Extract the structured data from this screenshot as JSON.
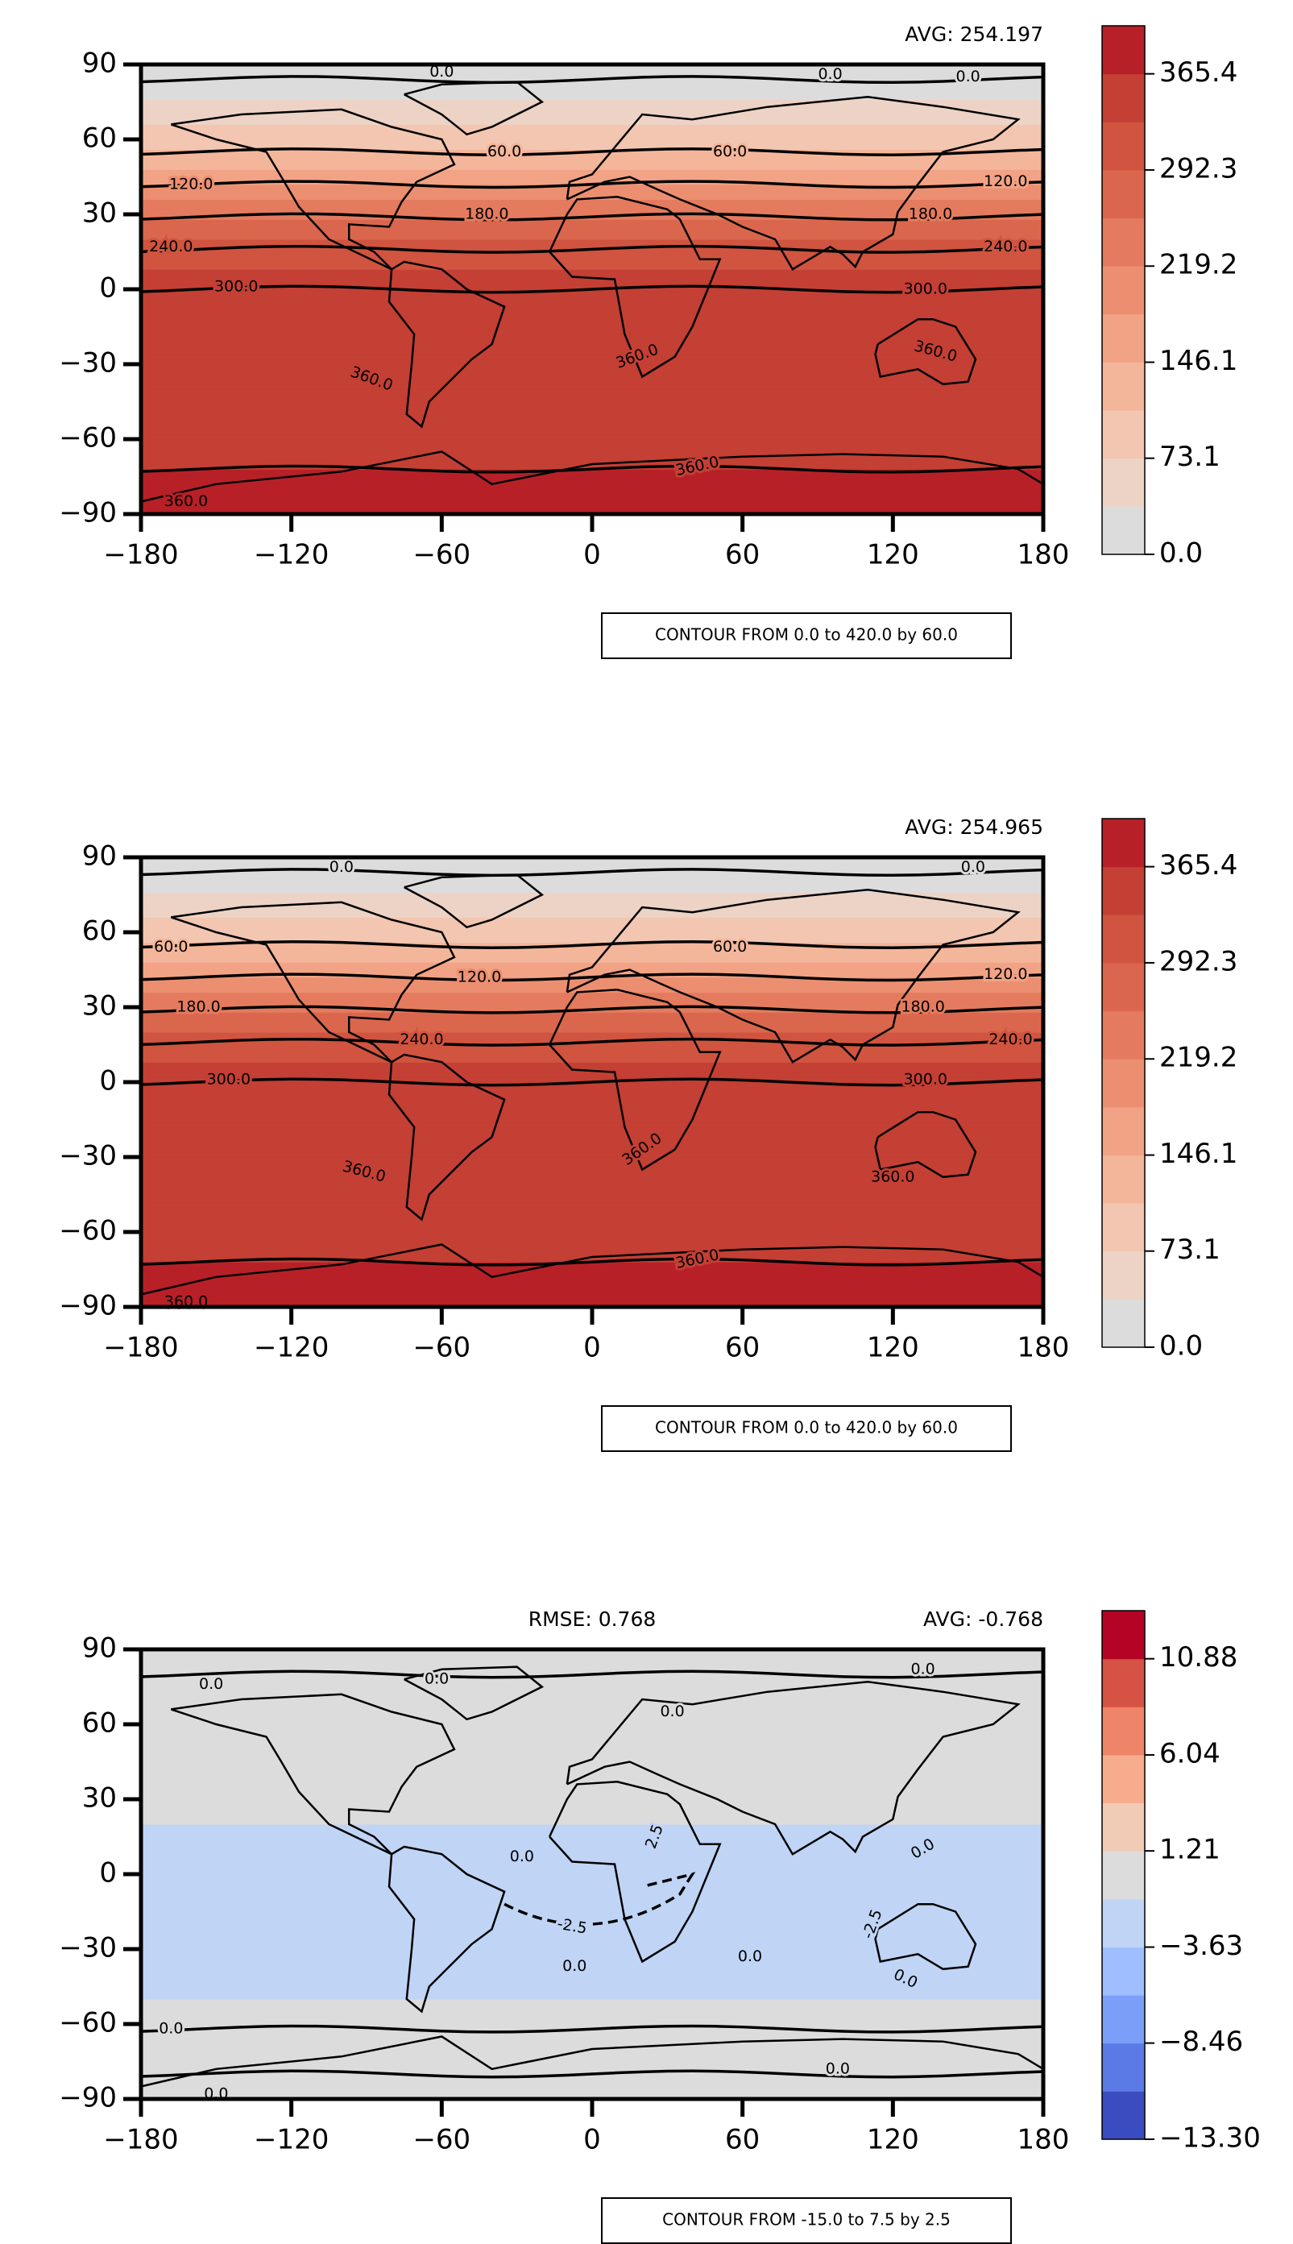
{
  "chart_data": [
    {
      "type": "contour-map",
      "avg": "AVG: 254.197",
      "contour_info": "CONTOUR FROM 0.0 to 420.0 by 60.0",
      "xlim": [
        -180,
        180
      ],
      "ylim": [
        -90,
        90
      ],
      "xticks": [
        {
          "value": -180,
          "label": "−180"
        },
        {
          "value": -120,
          "label": "−120"
        },
        {
          "value": -60,
          "label": "−60"
        },
        0,
        60,
        120,
        180
      ],
      "yticks": [
        {
          "value": -90,
          "label": "−90"
        },
        {
          "value": -60,
          "label": "−60"
        },
        {
          "value": -30,
          "label": "−30"
        },
        0,
        30,
        60,
        90
      ],
      "colorbar_lim": [
        0,
        401.94
      ],
      "colorbar_ticks": [
        {
          "value": 0,
          "label": "0.0"
        },
        73.1,
        146.1,
        219.2,
        292.3,
        365.4
      ],
      "colors": [
        "#dddcdc",
        "#ecd3c5",
        "#f2c6b0",
        "#f4b69b",
        "#f2a385",
        "#ec8f70",
        "#e47b5e",
        "#da674d",
        "#d0543f",
        "#c43f34",
        "#b82027"
      ],
      "contour_labels": [
        "0.0",
        "0.0",
        "0.0",
        "60.0",
        "60.0",
        "120.0",
        "120.0",
        "180.0",
        "180.0",
        "240.0",
        "240.0",
        "300.0",
        "300.0",
        "360.0",
        "360.0",
        "360.0",
        "360.0",
        "360.0"
      ]
    },
    {
      "type": "contour-map",
      "avg": "AVG: 254.965",
      "contour_info": "CONTOUR FROM 0.0 to 420.0 by 60.0",
      "xlim": [
        -180,
        180
      ],
      "ylim": [
        -90,
        90
      ],
      "xticks": [
        {
          "value": -180,
          "label": "−180"
        },
        {
          "value": -120,
          "label": "−120"
        },
        {
          "value": -60,
          "label": "−60"
        },
        0,
        60,
        120,
        180
      ],
      "yticks": [
        {
          "value": -90,
          "label": "−90"
        },
        {
          "value": -60,
          "label": "−60"
        },
        {
          "value": -30,
          "label": "−30"
        },
        0,
        30,
        60,
        90
      ],
      "colorbar_lim": [
        0,
        401.94
      ],
      "colorbar_ticks": [
        {
          "value": 0,
          "label": "0.0"
        },
        73.1,
        146.1,
        219.2,
        292.3,
        365.4
      ],
      "colors": [
        "#dddcdc",
        "#ecd3c5",
        "#f2c6b0",
        "#f4b69b",
        "#f2a385",
        "#ec8f70",
        "#e47b5e",
        "#da674d",
        "#d0543f",
        "#c43f34",
        "#b82027"
      ],
      "contour_labels": [
        "0.0",
        "0.0",
        "60.0",
        "60.0",
        "120.0",
        "120.0",
        "180.0",
        "180.0",
        "240.0",
        "240.0",
        "300.0",
        "300.0",
        "360.0",
        "360.0",
        "360.0",
        "360.0",
        "360.0"
      ]
    },
    {
      "type": "contour-map",
      "rmse": "RMSE: 0.768",
      "avg": "AVG: -0.768",
      "contour_info": "CONTOUR FROM -15.0 to 7.5 by 2.5",
      "xlim": [
        -180,
        180
      ],
      "ylim": [
        -90,
        90
      ],
      "xticks": [
        {
          "value": -180,
          "label": "−180"
        },
        {
          "value": -120,
          "label": "−120"
        },
        {
          "value": -60,
          "label": "−60"
        },
        0,
        60,
        120,
        180
      ],
      "yticks": [
        {
          "value": -90,
          "label": "−90"
        },
        {
          "value": -60,
          "label": "−60"
        },
        {
          "value": -30,
          "label": "−30"
        },
        0,
        30,
        60,
        90
      ],
      "colorbar_lim": [
        -13.3,
        13.3
      ],
      "colorbar_ticks": [
        {
          "value": -13.3,
          "label": "−13.30"
        },
        {
          "value": -8.46,
          "label": "−8.46"
        },
        {
          "value": -3.63,
          "label": "−3.63"
        },
        1.21,
        6.04,
        10.88
      ],
      "colors": [
        "#3b4cc0",
        "#5b7ae5",
        "#7b9ff9",
        "#9ebeff",
        "#c0d4f5",
        "#dcdcdc",
        "#f2cbb7",
        "#f7ac8e",
        "#ee8468",
        "#d65244",
        "#b40426"
      ],
      "contour_labels": [
        "0.0",
        "0.0",
        "0.0",
        "0.0",
        "0.0",
        "0.0",
        "0.0",
        "0.0",
        "0.0",
        "0.0",
        "0.0",
        "0.0",
        "-2.5",
        "2.5",
        "-2.5"
      ]
    }
  ]
}
